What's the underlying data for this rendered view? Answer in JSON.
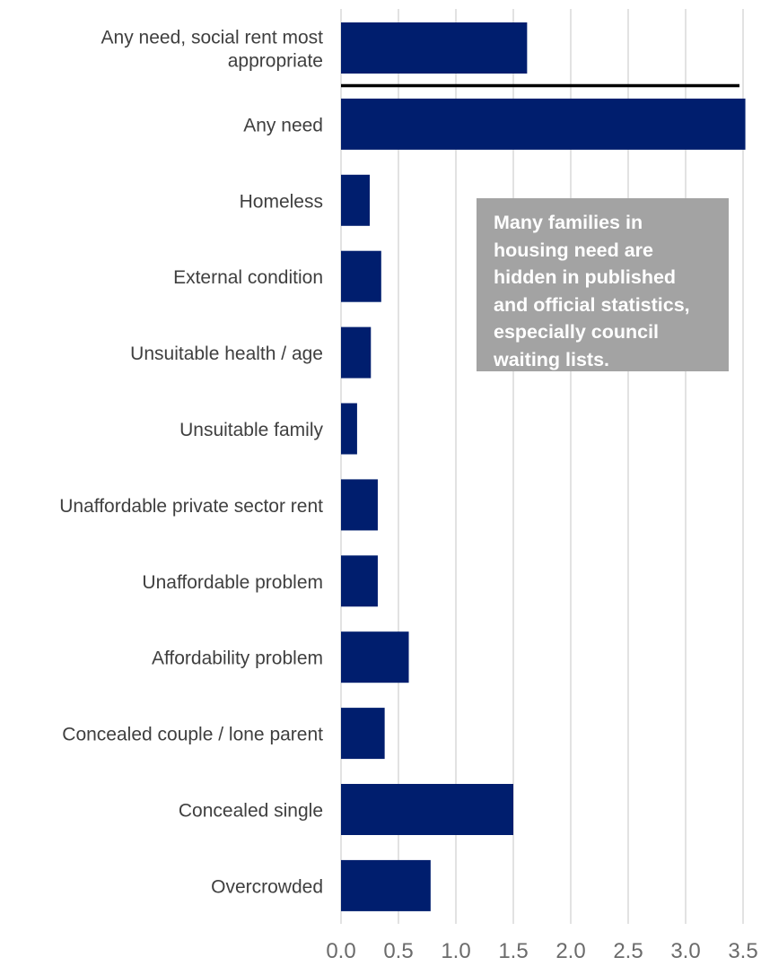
{
  "chart_data": {
    "type": "bar",
    "orientation": "horizontal",
    "title": "",
    "xlabel": "",
    "ylabel": "",
    "categories": [
      "Any need, social rent most\nappropriate",
      "Any need",
      "Homeless",
      "External condition",
      "Unsuitable health / age",
      "Unsuitable family",
      "Unaffordable private sector rent",
      "Unaffordable problem",
      "Affordability problem",
      "Concealed couple / lone parent",
      "Concealed single",
      "Overcrowded"
    ],
    "values": [
      1.62,
      3.52,
      0.25,
      0.35,
      0.26,
      0.14,
      0.32,
      0.32,
      0.59,
      0.38,
      1.5,
      0.78
    ],
    "xlim": [
      0,
      3.5
    ],
    "xticks": [
      "0.0",
      "0.5",
      "1.0",
      "1.5",
      "2.0",
      "2.5",
      "3.0",
      "3.5"
    ],
    "grid": "vertical",
    "separator_after_category": 0,
    "bar_color": "#001e6e",
    "grid_color": "#d9d9d9",
    "annotation": {
      "text": "Many families in\nhousing need are\nhidden in published\nand official statistics,\nespecially council\nwaiting  lists.",
      "background": "#a3a3a3",
      "color": "#ffffff"
    }
  }
}
